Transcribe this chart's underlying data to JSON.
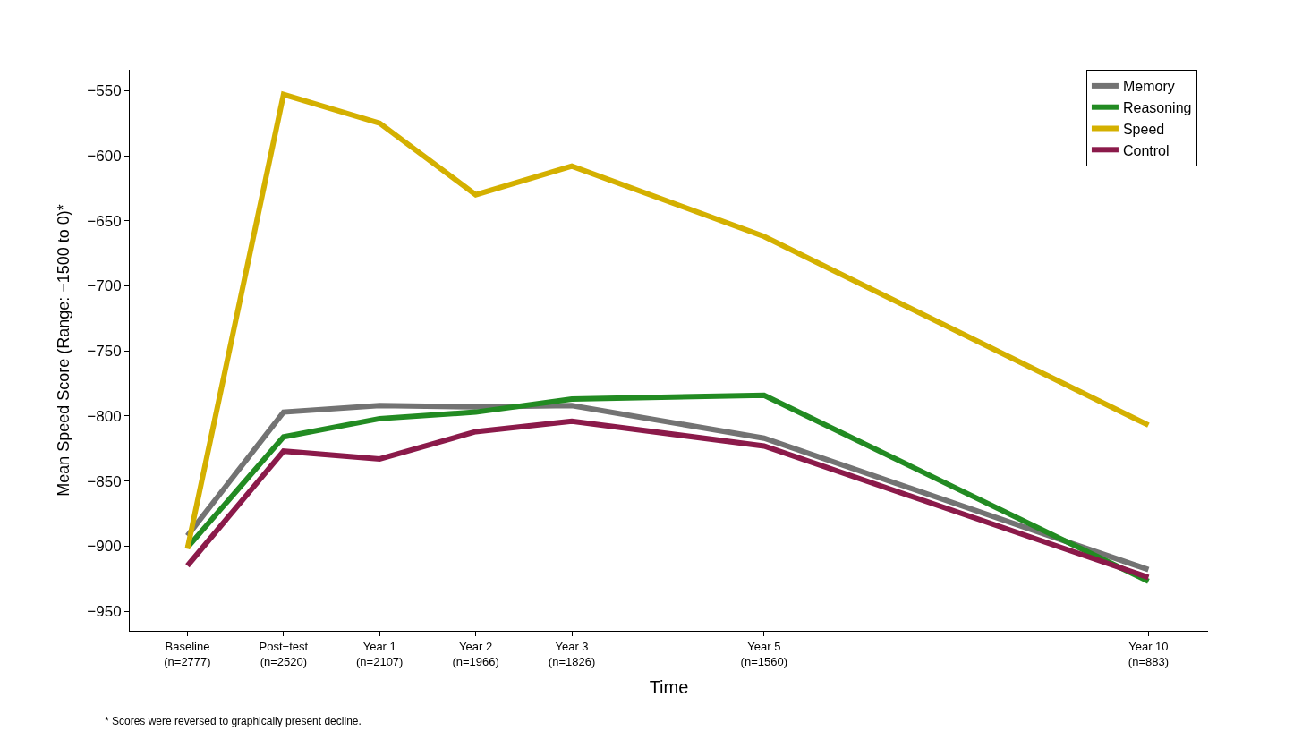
{
  "chart_data": {
    "type": "line",
    "xlabel": "Time",
    "ylabel": "Mean Speed Score (Range: −1500 to 0)*",
    "categories": [
      "Baseline\n(n=2777)",
      "Post−test\n(n=2520)",
      "Year 1\n(n=2107)",
      "Year 2\n(n=1966)",
      "Year 3\n(n=1826)",
      null,
      "Year 5\n(n=1560)",
      null,
      null,
      null,
      "Year 10\n(n=883)"
    ],
    "ylim": [
      -965,
      -534
    ],
    "yticks": [
      {
        "value": -550,
        "label": "−550"
      },
      {
        "value": -600,
        "label": "−600"
      },
      {
        "value": -650,
        "label": "−650"
      },
      {
        "value": -700,
        "label": "−700"
      },
      {
        "value": -750,
        "label": "−750"
      },
      {
        "value": -800,
        "label": "−800"
      },
      {
        "value": -850,
        "label": "−850"
      },
      {
        "value": -900,
        "label": "−900"
      },
      {
        "value": -950,
        "label": "−950"
      }
    ],
    "series": [
      {
        "name": "Memory",
        "color": "#737373",
        "values": [
          -892,
          -797,
          -792,
          -793,
          -792,
          null,
          -817,
          null,
          null,
          null,
          -918
        ]
      },
      {
        "name": "Reasoning",
        "color": "#228b22",
        "values": [
          -901,
          -816,
          -802,
          -797,
          -787,
          null,
          -784,
          null,
          null,
          null,
          -927
        ]
      },
      {
        "name": "Speed",
        "color": "#d4b000",
        "values": [
          -902,
          -553,
          -575,
          -630,
          -608,
          null,
          -662,
          null,
          null,
          null,
          -807
        ]
      },
      {
        "name": "Control",
        "color": "#8b1a4a",
        "values": [
          -915,
          -827,
          -833,
          -812,
          -804,
          null,
          -823,
          null,
          null,
          null,
          -924
        ]
      }
    ],
    "annotations": [
      "* Scores were reversed to graphically present decline."
    ],
    "legend": "top right",
    "grid": false,
    "marker": "none",
    "line_style": "solid"
  }
}
